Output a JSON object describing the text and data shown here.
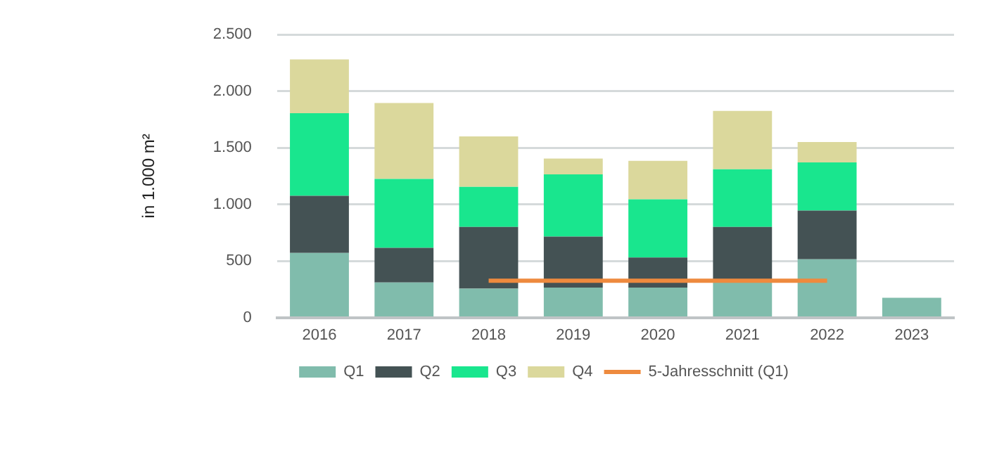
{
  "chart_data": {
    "type": "bar",
    "stacked": true,
    "ylabel": "in 1.000 m²",
    "categories": [
      "2016",
      "2017",
      "2018",
      "2019",
      "2020",
      "2021",
      "2022",
      "2023"
    ],
    "series": [
      {
        "name": "Q1",
        "color": "#80bcac",
        "values": [
          570,
          310,
          255,
          265,
          265,
          330,
          515,
          175
        ]
      },
      {
        "name": "Q2",
        "color": "#445254",
        "values": [
          505,
          305,
          545,
          450,
          265,
          470,
          430,
          null
        ]
      },
      {
        "name": "Q3",
        "color": "#19e68e",
        "values": [
          730,
          610,
          355,
          550,
          515,
          510,
          425,
          null
        ]
      },
      {
        "name": "Q4",
        "color": "#dbd89c",
        "values": [
          475,
          670,
          445,
          140,
          340,
          515,
          180,
          null
        ]
      },
      {
        "name": "5-Jahresschnitt (Q1)",
        "type": "line",
        "color": "#ee8a3e",
        "values": [
          null,
          null,
          325,
          325,
          325,
          325,
          325,
          null
        ]
      }
    ],
    "ylim": [
      0,
      2500
    ],
    "yticks": [
      0,
      {
        "value": 500,
        "label": "500"
      },
      {
        "value": 1000,
        "label": "1.000"
      },
      {
        "value": 1500,
        "label": "1.500"
      },
      {
        "value": 2000,
        "label": "2.000"
      },
      {
        "value": 2500,
        "label": "2.500"
      }
    ],
    "grid": "y",
    "legend": "bottom",
    "marker": "none",
    "line_style": "solid"
  }
}
